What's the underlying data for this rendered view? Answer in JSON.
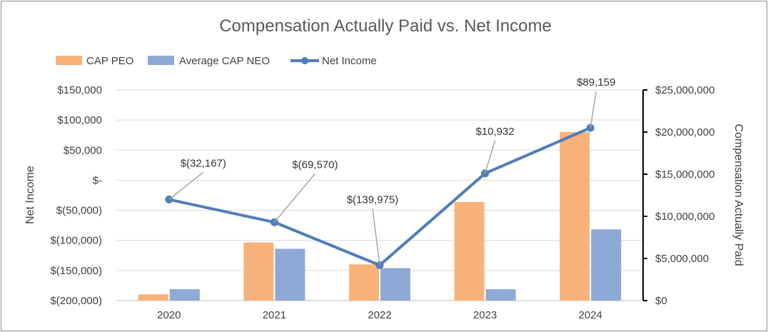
{
  "chart_data": {
    "type": "bar",
    "title": "Compensation Actually Paid vs. Net Income",
    "categories": [
      "2020",
      "2021",
      "2022",
      "2023",
      "2024"
    ],
    "series": [
      {
        "name": "CAP PEO",
        "type": "bar",
        "axis": "right",
        "color": "#F9B27A",
        "values": [
          750000,
          6900000,
          4300000,
          11700000,
          20000000
        ]
      },
      {
        "name": "Average CAP NEO",
        "type": "bar",
        "axis": "right",
        "color": "#8EA9D5",
        "values": [
          1350000,
          6150000,
          3850000,
          1350000,
          8450000
        ]
      },
      {
        "name": "Net Income",
        "type": "line",
        "axis": "left",
        "color": "#4F7DB8",
        "values": [
          -32167,
          -69570,
          -139975,
          10932,
          89159
        ],
        "labels": [
          "$(32,167)",
          "$(69,570)",
          "$(139,975)",
          "$10,932",
          "$89,159"
        ],
        "plotted": [
          12000000,
          9300000,
          4200000,
          15100000,
          20500000
        ]
      }
    ],
    "left_axis": {
      "label": "Net Income",
      "ylim": [
        -200000,
        150000
      ],
      "ticks": [
        150000,
        100000,
        50000,
        0,
        -50000,
        -100000,
        -150000,
        -200000
      ],
      "tick_labels": [
        "$150,000",
        "$100,000",
        "$50,000",
        "$-",
        "$(50,000)",
        "$(100,000)",
        "$(150,000)",
        "$(200,000)"
      ]
    },
    "right_axis": {
      "label": "Compensation Actually Paid",
      "ylim": [
        0,
        25000000
      ],
      "ticks": [
        25000000,
        20000000,
        15000000,
        10000000,
        5000000,
        0
      ],
      "tick_labels": [
        "$25,000,000",
        "$20,000,000",
        "$15,000,000",
        "$10,000,000",
        "$5,000,000",
        "$0"
      ]
    },
    "legend": [
      "CAP PEO",
      "Average CAP NEO",
      "Net Income"
    ],
    "legend_position": "top-left",
    "grid": true
  }
}
